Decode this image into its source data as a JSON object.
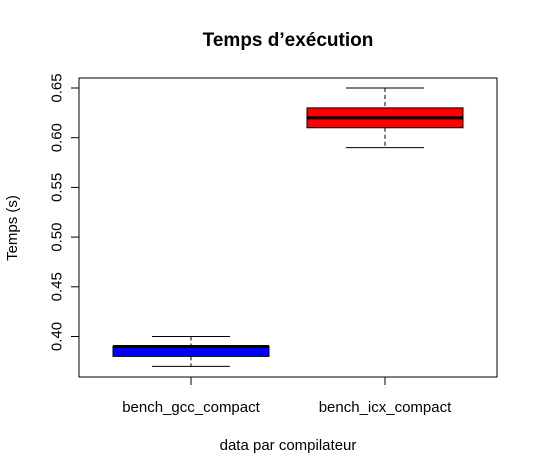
{
  "chart_data": {
    "type": "boxplot",
    "title": "Temps d’exécution",
    "xlabel": "data par compilateur",
    "ylabel": "Temps (s)",
    "ylim": [
      0.36,
      0.66
    ],
    "yticks": [
      "0.40",
      "0.45",
      "0.50",
      "0.55",
      "0.60",
      "0.65"
    ],
    "ytick_values": [
      0.4,
      0.45,
      0.5,
      0.55,
      0.6,
      0.65
    ],
    "grid": false,
    "categories": [
      "bench_gcc_compact",
      "bench_icx_compact"
    ],
    "boxes": [
      {
        "label": "bench_gcc_compact",
        "whisker_low": 0.37,
        "q1": 0.38,
        "median": 0.39,
        "q3": 0.39,
        "whisker_high": 0.4,
        "color": "#0000ff"
      },
      {
        "label": "bench_icx_compact",
        "whisker_low": 0.59,
        "q1": 0.61,
        "median": 0.62,
        "q3": 0.63,
        "whisker_high": 0.65,
        "color": "#ff0000"
      }
    ]
  }
}
